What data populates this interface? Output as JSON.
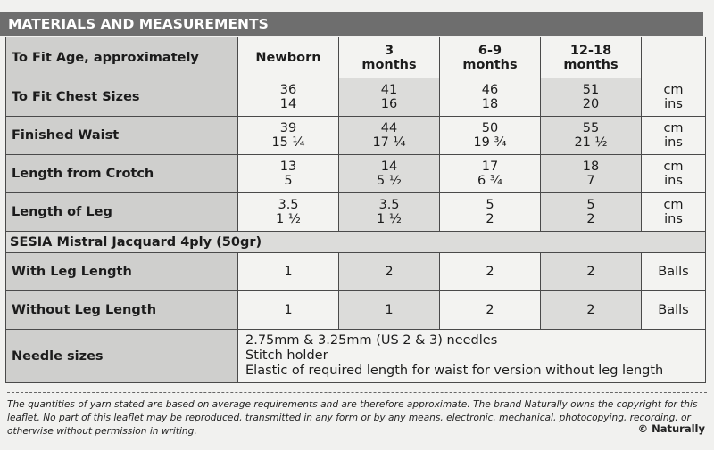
{
  "title": "MATERIALS AND MEASUREMENTS",
  "headers": {
    "label": "To Fit Age, approximately",
    "sizes": [
      "Newborn",
      [
        "3",
        "months"
      ],
      [
        "6-9",
        "months"
      ],
      [
        "12-18",
        "months"
      ]
    ]
  },
  "measure_rows": [
    {
      "label": "To Fit Chest Sizes",
      "cm": [
        "36",
        "41",
        "46",
        "51"
      ],
      "ins": [
        "14",
        "16",
        "18",
        "20"
      ],
      "unit_cm": "cm",
      "unit_ins": "ins"
    },
    {
      "label": "Finished Waist",
      "cm": [
        "39",
        "44",
        "50",
        "55"
      ],
      "ins": [
        "15 ¼",
        "17 ¼",
        "19 ¾",
        "21 ½"
      ],
      "unit_cm": "cm",
      "unit_ins": "ins"
    },
    {
      "label": "Length from Crotch",
      "cm": [
        "13",
        "14",
        "17",
        "18"
      ],
      "ins": [
        "5",
        "5 ½",
        "6 ¾",
        "7"
      ],
      "unit_cm": "cm",
      "unit_ins": "ins"
    },
    {
      "label": "Length of Leg",
      "cm": [
        "3.5",
        "3.5",
        "5",
        "5"
      ],
      "ins": [
        "1 ½",
        "1 ½",
        "2",
        "2"
      ],
      "unit_cm": "cm",
      "unit_ins": "ins"
    }
  ],
  "yarn": "SESIA  Mistral Jacquard 4ply (50gr)",
  "ball_rows": [
    {
      "label": "With Leg Length",
      "values": [
        "1",
        "2",
        "2",
        "2"
      ],
      "unit": "Balls"
    },
    {
      "label": "Without Leg Length",
      "values": [
        "1",
        "1",
        "2",
        "2"
      ],
      "unit": "Balls"
    }
  ],
  "needles": {
    "label": "Needle sizes",
    "lines": [
      "2.75mm & 3.25mm (US 2 & 3) needles",
      "Stitch holder",
      "Elastic of required length for waist for version without leg length"
    ]
  },
  "footer": "The quantities of yarn stated are based on average requirements and are therefore approximate. The brand Naturally owns the copyright for this leaflet. No part of this leaflet may be reproduced, transmitted in any form or by any means, electronic, mechanical, photocopying, recording, or otherwise without permission in writing.",
  "copyright": "© Naturally"
}
